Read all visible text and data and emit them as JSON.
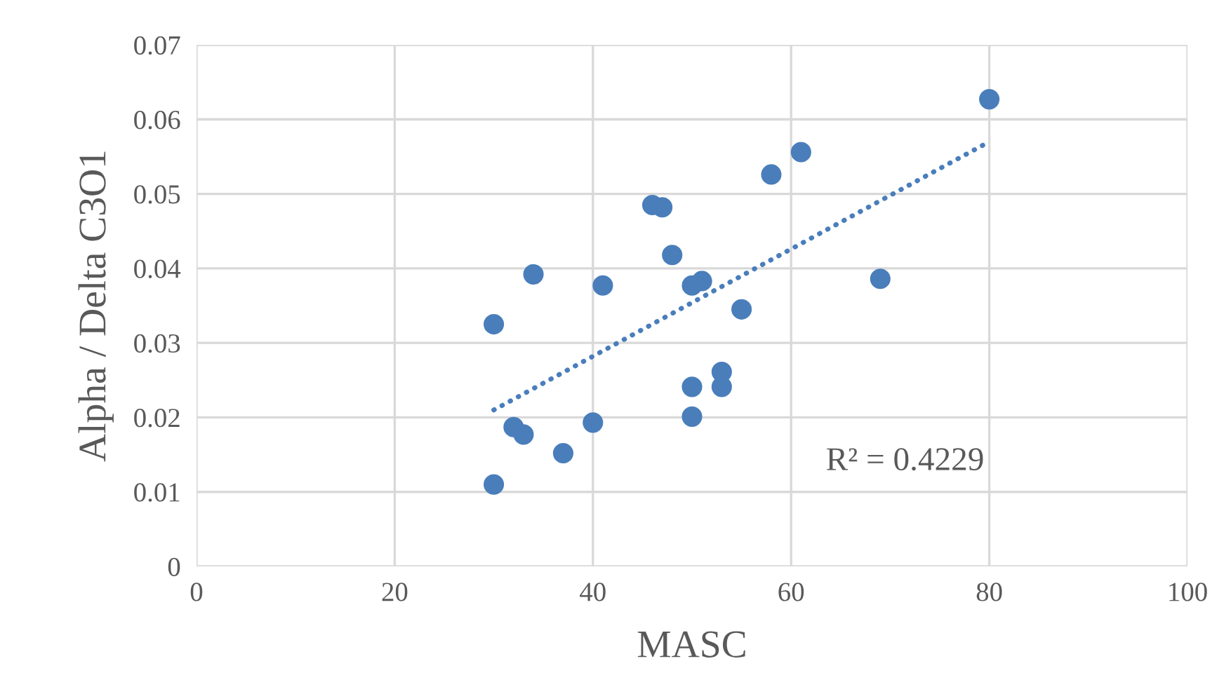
{
  "chart_data": {
    "type": "scatter",
    "xlabel": "MASC",
    "ylabel": "Alpha / Delta C3O1",
    "series": [
      {
        "color": "#4a7ebb",
        "marker": "circle",
        "x": [
          30,
          30,
          32,
          33,
          34,
          37,
          40,
          41,
          46,
          47,
          48,
          50,
          51,
          50,
          50,
          53,
          53,
          55,
          58,
          61,
          69,
          80
        ],
        "values": [
          0.0325,
          0.011,
          0.0187,
          0.0177,
          0.0392,
          0.0152,
          0.0193,
          0.0377,
          0.0485,
          0.0482,
          0.0418,
          0.0377,
          0.0383,
          0.0241,
          0.0201,
          0.0261,
          0.0241,
          0.0345,
          0.0526,
          0.0556,
          0.0386,
          0.0627
        ]
      },
      {
        "type": "line",
        "color": "#4a7ebb",
        "line_style": "dotted",
        "x": [
          30,
          80
        ],
        "values": [
          0.021,
          0.057
        ]
      }
    ],
    "annotations": [
      "R² = 0.4229"
    ],
    "xlim": [
      0,
      100
    ],
    "xticks": [
      0,
      20,
      40,
      60,
      80,
      100
    ],
    "ylim": [
      0,
      0.07
    ],
    "yticks": [
      0,
      0.01,
      0.02,
      0.03,
      0.04,
      0.05,
      0.06,
      0.07
    ],
    "grid": true,
    "legend": false
  }
}
